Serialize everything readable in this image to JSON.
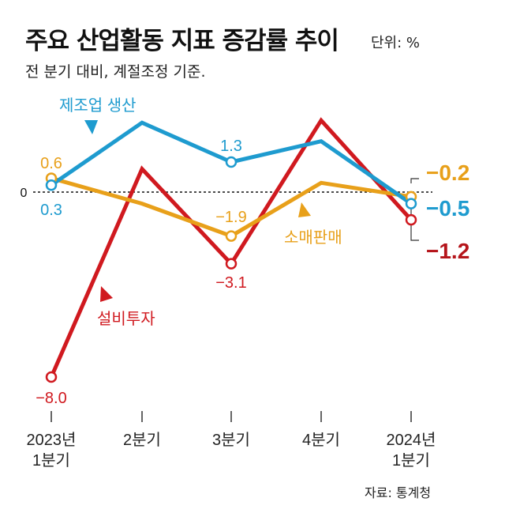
{
  "title": "주요 산업활동 지표 증감률 추이",
  "unit": "단위: %",
  "subtitle": "전 분기 대비, 계절조정 기준.",
  "source": "자료: 통계청",
  "chart_data": {
    "type": "line",
    "categories": [
      [
        "2023년",
        "1분기"
      ],
      [
        "2분기"
      ],
      [
        "3분기"
      ],
      [
        "4분기"
      ],
      [
        "2024년",
        "1분기"
      ]
    ],
    "zero_label": "0",
    "ylim": [
      -8.5,
      3.5
    ],
    "series": [
      {
        "name": "제조업 생산",
        "color": "#1e9bcf",
        "values": [
          0.3,
          3.0,
          1.3,
          2.2,
          -0.5
        ],
        "labels": [
          "0.3",
          null,
          "1.3",
          null,
          "-0.5"
        ]
      },
      {
        "name": "소매판매",
        "color": "#e8a01a",
        "values": [
          0.6,
          -0.5,
          -1.9,
          0.4,
          -0.2
        ],
        "labels": [
          "0.6",
          null,
          "-1.9",
          null,
          "-0.2"
        ]
      },
      {
        "name": "설비투자",
        "color": "#d0191f",
        "values": [
          -8.0,
          1.0,
          -3.1,
          3.1,
          -1.2
        ],
        "labels": [
          "-8.0",
          null,
          "-3.1",
          null,
          "-1.2"
        ]
      }
    ]
  }
}
